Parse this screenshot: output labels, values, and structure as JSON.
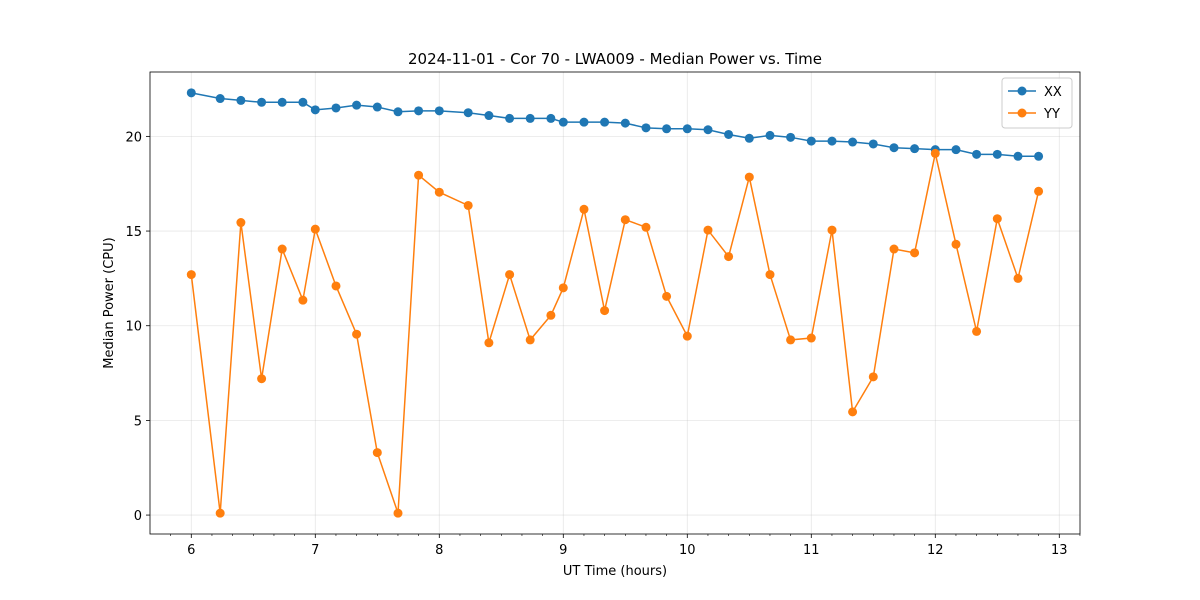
{
  "chart_data": {
    "type": "line",
    "title": "2024-11-01 - Cor 70 - LWA009 - Median Power vs. Time",
    "xlabel": "UT Time (hours)",
    "ylabel": "Median Power (CPU)",
    "xlim": [
      5.667,
      13.167
    ],
    "ylim": [
      -1.0,
      23.4
    ],
    "xticks": [
      6,
      7,
      8,
      9,
      10,
      11,
      12,
      13
    ],
    "yticks": [
      0,
      5,
      10,
      15,
      20
    ],
    "grid": true,
    "legend_position": "top-right",
    "x": [
      6.0,
      6.233,
      6.4,
      6.567,
      6.733,
      6.9,
      7.0,
      7.167,
      7.333,
      7.5,
      7.667,
      7.833,
      8.0,
      8.233,
      8.4,
      8.567,
      8.733,
      8.9,
      9.0,
      9.167,
      9.333,
      9.5,
      9.667,
      9.833,
      10.0,
      10.167,
      10.333,
      10.5,
      10.667,
      10.833,
      11.0,
      11.167,
      11.333,
      11.5,
      11.667,
      11.833,
      12.0,
      12.167,
      12.333,
      12.5,
      12.667,
      12.833
    ],
    "series": [
      {
        "name": "XX",
        "color": "#1f77b4",
        "values": [
          22.3,
          22.0,
          21.9,
          21.8,
          21.8,
          21.8,
          21.4,
          21.5,
          21.65,
          21.55,
          21.3,
          21.35,
          21.35,
          21.25,
          21.1,
          20.95,
          20.95,
          20.95,
          20.75,
          20.75,
          20.75,
          20.7,
          20.45,
          20.4,
          20.4,
          20.35,
          20.1,
          19.9,
          20.05,
          19.95,
          19.75,
          19.75,
          19.7,
          19.6,
          19.4,
          19.35,
          19.3,
          19.3,
          19.05,
          19.05,
          18.95,
          18.95
        ]
      },
      {
        "name": "YY",
        "color": "#ff7f0e",
        "values": [
          12.7,
          0.1,
          15.45,
          7.2,
          14.05,
          11.35,
          15.1,
          12.1,
          9.55,
          3.3,
          0.1,
          17.95,
          17.05,
          16.35,
          9.1,
          12.7,
          9.25,
          10.55,
          12.0,
          16.15,
          10.8,
          15.6,
          15.2,
          11.55,
          9.45,
          15.05,
          13.65,
          17.85,
          12.7,
          9.25,
          9.35,
          15.05,
          5.45,
          7.3,
          14.05,
          13.85,
          19.1,
          14.3,
          9.7,
          15.65,
          12.5,
          17.1
        ]
      }
    ]
  }
}
